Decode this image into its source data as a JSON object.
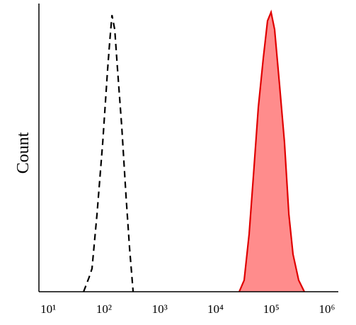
{
  "chart_data": {
    "type": "line",
    "y_label": "Count",
    "xscale": "log",
    "grid": false,
    "xlim": [
      6.8,
      1600000
    ],
    "ylim": [
      0,
      100
    ],
    "xticks": [
      {
        "value": 10,
        "label": "10¹"
      },
      {
        "value": 100,
        "label": "10²"
      },
      {
        "value": 1000,
        "label": "10³"
      },
      {
        "value": 10000,
        "label": "10⁴"
      },
      {
        "value": 100000,
        "label": "10⁵"
      },
      {
        "value": 1000000,
        "label": "10⁶"
      }
    ],
    "series": [
      {
        "color": "#000000",
        "dashed": true,
        "filled": false,
        "x": [
          43,
          54,
          61,
          75,
          95,
          116,
          127,
          139,
          156,
          175,
          209,
          249,
          288,
          333
        ],
        "values": [
          0,
          5,
          8,
          27,
          52,
          77,
          87,
          96,
          91,
          77,
          57,
          33,
          15,
          0
        ]
      },
      {
        "color": "#e00000",
        "dashed": false,
        "filled": true,
        "fill": "#ff8c8c",
        "x": [
          26700,
          32700,
          40200,
          47900,
          58700,
          72100,
          85900,
          99400,
          115000,
          141000,
          173000,
          207000,
          246000,
          311000,
          393000
        ],
        "values": [
          0,
          4,
          20,
          40,
          64,
          81,
          94,
          97,
          91,
          72,
          52,
          27,
          13,
          4,
          0
        ]
      }
    ]
  }
}
